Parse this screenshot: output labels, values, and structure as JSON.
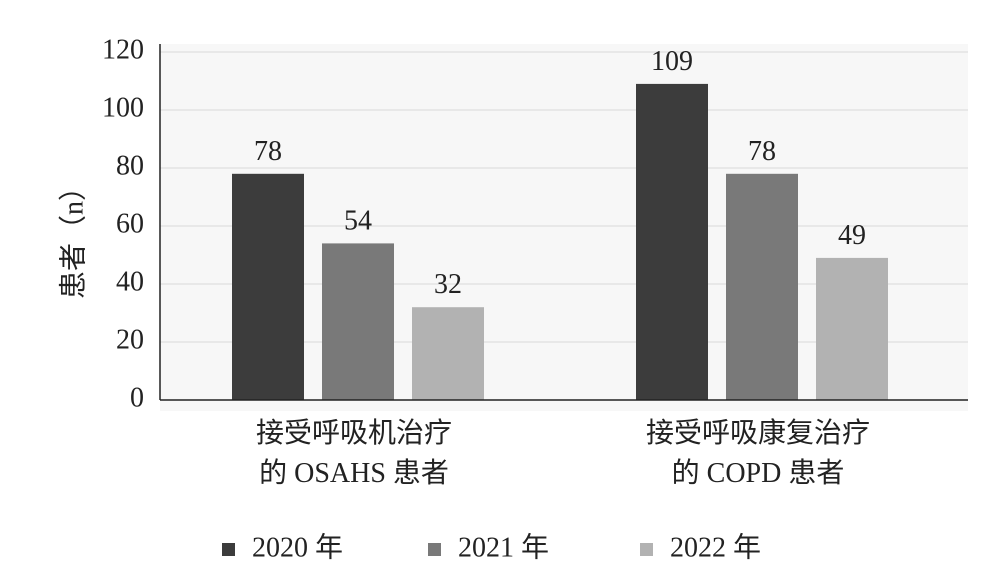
{
  "chart_data": {
    "type": "bar",
    "categories": [
      [
        "接受呼吸机治疗",
        "的 OSAHS 患者"
      ],
      [
        "接受呼吸康复治疗",
        "的 COPD 患者"
      ]
    ],
    "series": [
      {
        "name": "2020 年",
        "values": [
          78,
          109
        ],
        "color": "#3c3c3c"
      },
      {
        "name": "2021 年",
        "values": [
          54,
          78
        ],
        "color": "#797979"
      },
      {
        "name": "2022 年",
        "values": [
          32,
          49
        ],
        "color": "#b2b2b2"
      }
    ],
    "ylabel": "患者（n）",
    "ylim": [
      0,
      120
    ],
    "yticks": [
      0,
      20,
      40,
      60,
      80,
      100,
      120
    ],
    "grid": true,
    "legend_position": "bottom"
  }
}
